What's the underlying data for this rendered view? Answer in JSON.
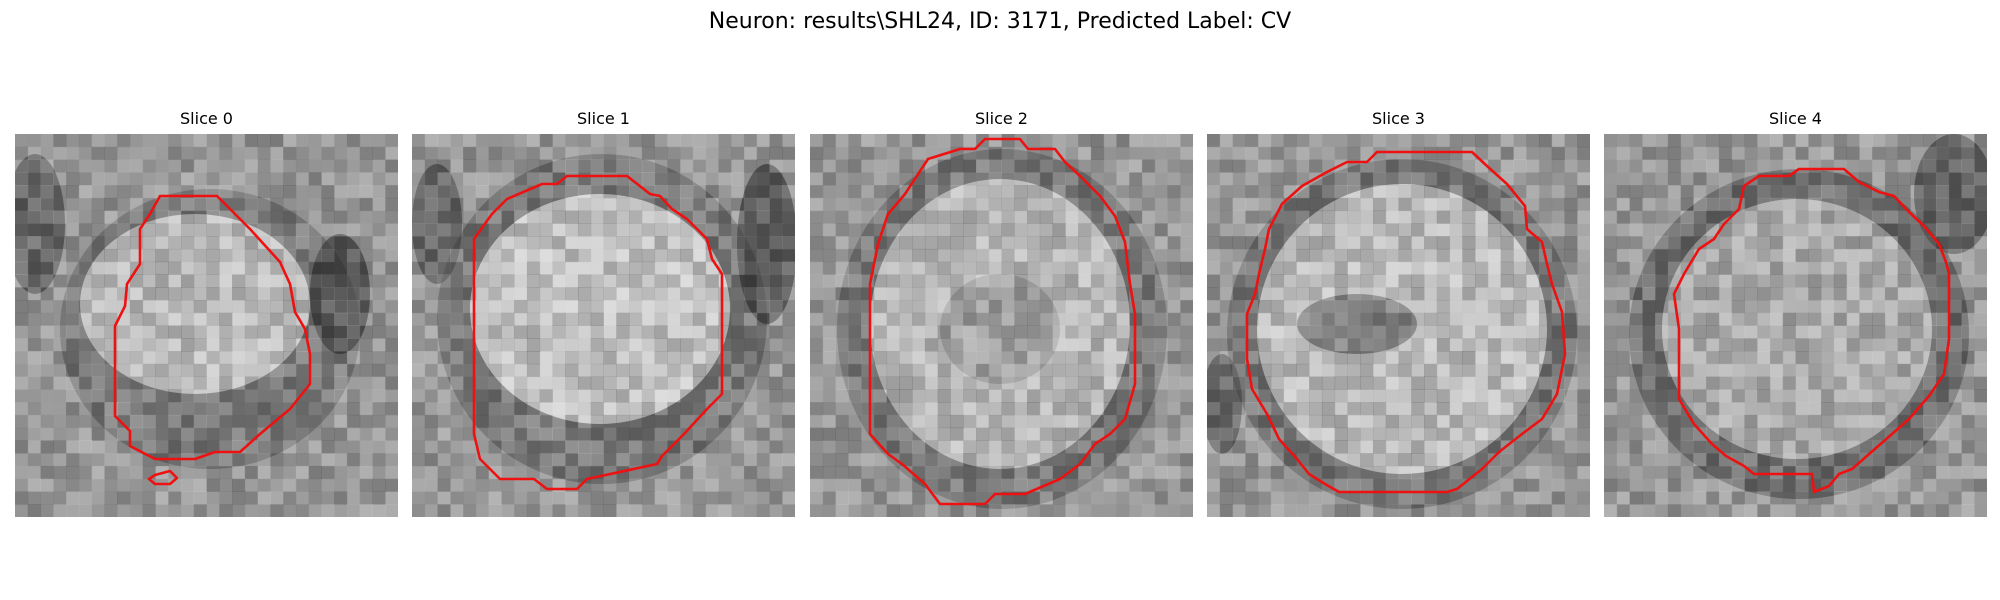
{
  "figure": {
    "title": "Neuron: results\\SHL24, ID: 3171, Predicted Label: CV"
  },
  "colors": {
    "contour": "#ee1111",
    "background": "#ffffff"
  },
  "panels": [
    {
      "title": "Slice 0"
    },
    {
      "title": "Slice 1"
    },
    {
      "title": "Slice 2"
    },
    {
      "title": "Slice 3"
    },
    {
      "title": "Slice 4"
    }
  ]
}
